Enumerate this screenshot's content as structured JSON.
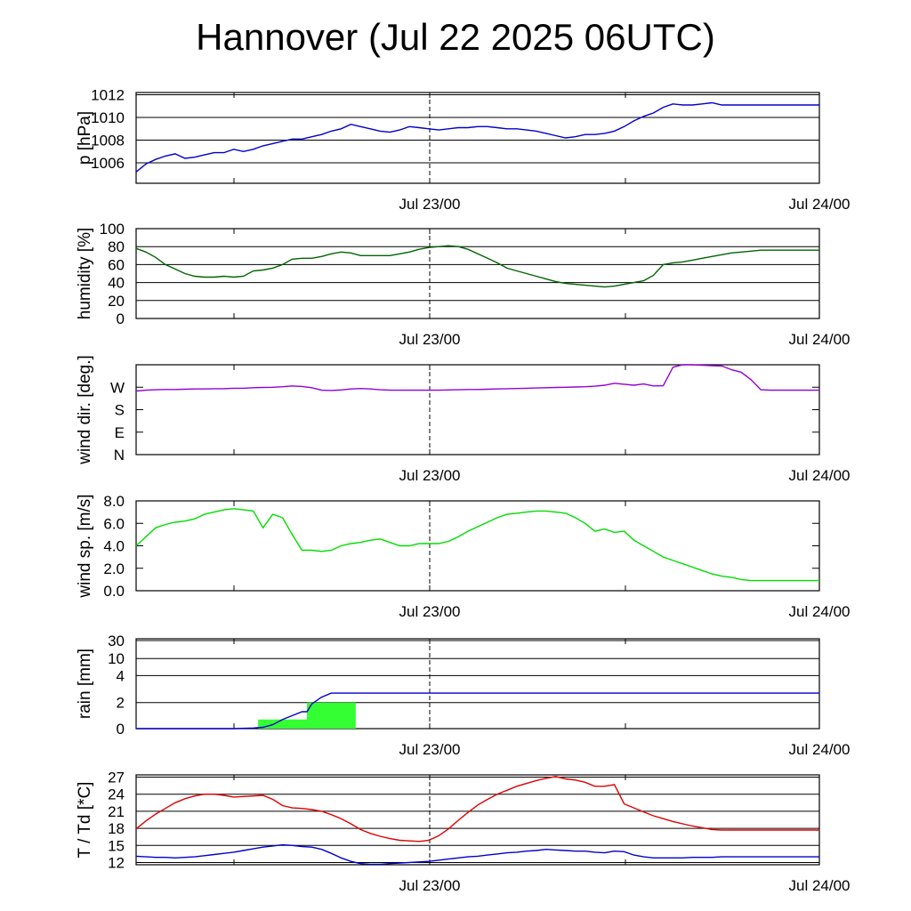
{
  "title": "Hannover (Jul 22 2025 06UTC)",
  "x_ticks": [
    "Jul 23/00",
    "Jul 24/00"
  ],
  "chart_data": [
    {
      "type": "line",
      "ylabel": "p [hPa]",
      "ylim": [
        1004.2,
        1012.2
      ],
      "yticks": [
        1006,
        1008,
        1010,
        1012
      ],
      "ytick_labels": [
        "1006",
        "1008",
        "1010",
        "1012"
      ],
      "grid": true,
      "series": [
        {
          "color": "#0000cc",
          "x": [
            0,
            1,
            2,
            3,
            4,
            5,
            6,
            7,
            8,
            9,
            10,
            11,
            12,
            13,
            14,
            15,
            16,
            17,
            18,
            19,
            20,
            21,
            22,
            23,
            24,
            25,
            26,
            27,
            28,
            29,
            30,
            31,
            32,
            33,
            34,
            35,
            36,
            37,
            38,
            39,
            40,
            41,
            42,
            43,
            44,
            45,
            46,
            47,
            48,
            49,
            50,
            51,
            52,
            53,
            54,
            55,
            56,
            57,
            58,
            59,
            60,
            61,
            62,
            63,
            64,
            65,
            66,
            67,
            68,
            69,
            70
          ],
          "y": [
            1005.2,
            1005.9,
            1006.3,
            1006.6,
            1006.8,
            1006.4,
            1006.5,
            1006.7,
            1006.9,
            1006.9,
            1007.2,
            1007.0,
            1007.2,
            1007.5,
            1007.7,
            1007.9,
            1008.1,
            1008.1,
            1008.3,
            1008.5,
            1008.8,
            1009.0,
            1009.4,
            1009.2,
            1009.0,
            1008.8,
            1008.7,
            1008.9,
            1009.2,
            1009.1,
            1009.0,
            1008.9,
            1009.0,
            1009.1,
            1009.1,
            1009.2,
            1009.2,
            1009.1,
            1009.0,
            1009.0,
            1008.9,
            1008.8,
            1008.6,
            1008.4,
            1008.2,
            1008.3,
            1008.5,
            1008.5,
            1008.6,
            1008.8,
            1009.2,
            1009.7,
            1010.1,
            1010.4,
            1010.9,
            1011.2,
            1011.1,
            1011.1,
            1011.2,
            1011.3,
            1011.1,
            1011.1,
            1011.1,
            1011.1,
            1011.1,
            1011.1,
            1011.1,
            1011.1,
            1011.1,
            1011.1,
            1011.1
          ]
        }
      ]
    },
    {
      "type": "line",
      "ylabel": "humidity [%]",
      "ylim": [
        0,
        100
      ],
      "yticks": [
        0,
        20,
        40,
        60,
        80,
        100
      ],
      "ytick_labels": [
        "0",
        "20",
        "40",
        "60",
        "80",
        "100"
      ],
      "grid": true,
      "series": [
        {
          "color": "#006400",
          "x": [
            0,
            1,
            2,
            3,
            4,
            5,
            6,
            7,
            8,
            9,
            10,
            11,
            12,
            13,
            14,
            15,
            16,
            17,
            18,
            19,
            20,
            21,
            22,
            23,
            24,
            25,
            26,
            27,
            28,
            29,
            30,
            31,
            32,
            33,
            34,
            35,
            36,
            37,
            38,
            39,
            40,
            41,
            42,
            43,
            44,
            45,
            46,
            47,
            48,
            49,
            50,
            51,
            52,
            53,
            54,
            55,
            56,
            57,
            58,
            59,
            60,
            61,
            62,
            63,
            64,
            65,
            66,
            67,
            68,
            69,
            70
          ],
          "y": [
            78,
            74,
            68,
            60,
            55,
            50,
            47,
            46,
            46,
            47,
            46,
            47,
            53,
            54,
            56,
            60,
            66,
            67,
            67,
            69,
            72,
            74,
            73,
            70,
            70,
            70,
            70,
            72,
            74,
            77,
            79,
            80,
            81,
            80,
            77,
            72,
            67,
            62,
            56,
            53,
            50,
            47,
            44,
            41,
            39,
            38,
            37,
            36,
            35,
            36,
            38,
            40,
            42,
            48,
            60,
            62,
            63,
            65,
            67,
            69,
            71,
            73,
            74,
            75,
            76,
            76,
            76,
            76,
            76,
            76,
            76
          ]
        }
      ]
    },
    {
      "type": "line",
      "ylabel": "wind dir. [deg.]",
      "ylim": [
        0,
        360
      ],
      "yticks": [
        0,
        90,
        180,
        270
      ],
      "ytick_labels": [
        "N",
        "E",
        "S",
        "W"
      ],
      "grid": false,
      "series": [
        {
          "color": "#9400d3",
          "x": [
            0,
            1,
            2,
            3,
            4,
            5,
            6,
            7,
            8,
            9,
            10,
            11,
            12,
            13,
            14,
            15,
            16,
            17,
            18,
            19,
            20,
            21,
            22,
            23,
            24,
            25,
            26,
            27,
            28,
            29,
            30,
            31,
            32,
            33,
            34,
            35,
            36,
            37,
            38,
            39,
            40,
            41,
            42,
            43,
            44,
            45,
            46,
            47,
            48,
            49,
            50,
            51,
            52,
            53,
            54,
            55,
            56,
            57,
            58,
            59,
            60,
            61,
            62,
            63,
            64,
            65,
            66,
            67,
            68,
            69,
            70
          ],
          "y": [
            255,
            258,
            260,
            261,
            261,
            262,
            263,
            263,
            264,
            264,
            266,
            266,
            268,
            269,
            270,
            272,
            275,
            273,
            268,
            258,
            257,
            259,
            263,
            265,
            263,
            260,
            258,
            258,
            258,
            258,
            258,
            258,
            259,
            260,
            261,
            261,
            262,
            263,
            264,
            265,
            266,
            267,
            268,
            269,
            270,
            271,
            272,
            274,
            278,
            286,
            282,
            278,
            283,
            275,
            276,
            350,
            360,
            360,
            358,
            356,
            355,
            340,
            330,
            300,
            260,
            258,
            258,
            258,
            258,
            258,
            258
          ]
        }
      ]
    },
    {
      "type": "line",
      "ylabel": "wind sp. [m/s]",
      "ylim": [
        0,
        8
      ],
      "yticks": [
        0,
        2,
        4,
        6,
        8
      ],
      "ytick_labels": [
        "0.0",
        "2.0",
        "4.0",
        "6.0",
        "8.0"
      ],
      "grid": false,
      "series": [
        {
          "color": "#00dd00",
          "x": [
            0,
            1,
            2,
            3,
            4,
            5,
            6,
            7,
            8,
            9,
            10,
            11,
            12,
            13,
            14,
            15,
            16,
            17,
            18,
            19,
            20,
            21,
            22,
            23,
            24,
            25,
            26,
            27,
            28,
            29,
            30,
            31,
            32,
            33,
            34,
            35,
            36,
            37,
            38,
            39,
            40,
            41,
            42,
            43,
            44,
            45,
            46,
            47,
            48,
            49,
            50,
            51,
            52,
            53,
            54,
            55,
            56,
            57,
            58,
            59,
            60,
            61,
            62,
            63,
            64,
            65,
            66,
            67,
            68,
            69,
            70
          ],
          "y": [
            4.0,
            4.8,
            5.6,
            5.9,
            6.1,
            6.2,
            6.4,
            6.8,
            7.0,
            7.2,
            7.3,
            7.2,
            7.1,
            5.6,
            6.8,
            6.5,
            5.0,
            3.6,
            3.6,
            3.5,
            3.6,
            4.0,
            4.2,
            4.3,
            4.5,
            4.6,
            4.3,
            4.0,
            4.0,
            4.2,
            4.2,
            4.2,
            4.4,
            4.8,
            5.3,
            5.7,
            6.1,
            6.5,
            6.8,
            6.9,
            7.0,
            7.1,
            7.1,
            7.0,
            6.9,
            6.5,
            6.0,
            5.3,
            5.5,
            5.2,
            5.3,
            4.5,
            4.0,
            3.5,
            3.0,
            2.7,
            2.4,
            2.1,
            1.8,
            1.5,
            1.3,
            1.2,
            1.0,
            0.9,
            0.9,
            0.9,
            0.9,
            0.9,
            0.9,
            0.9,
            0.9
          ]
        }
      ]
    },
    {
      "type": "bar",
      "ylabel": "rain [mm]",
      "ylim": [
        0,
        30
      ],
      "yticks": [
        0,
        2,
        4,
        10,
        30
      ],
      "ytick_labels": [
        "0",
        "2",
        "4",
        "10",
        "30"
      ],
      "grid": true,
      "bars": [
        {
          "x0": 12.5,
          "x1": 17.5,
          "value": 0.7
        },
        {
          "x0": 17.5,
          "x1": 22.5,
          "value": 2.0
        }
      ],
      "series": [
        {
          "color": "#0000cc",
          "x": [
            0,
            10,
            12,
            13,
            14,
            15,
            16,
            17,
            17.5,
            18,
            19,
            20,
            70
          ],
          "y": [
            0,
            0,
            0.05,
            0.1,
            0.3,
            0.7,
            1.0,
            1.3,
            1.3,
            1.9,
            2.4,
            2.7,
            2.7
          ]
        }
      ]
    },
    {
      "type": "line",
      "ylabel": "T / Td [*C]",
      "ylim": [
        11.6,
        27.4
      ],
      "yticks": [
        12,
        15,
        18,
        21,
        24,
        27
      ],
      "ytick_labels": [
        "12",
        "15",
        "18",
        "21",
        "24",
        "27"
      ],
      "grid": true,
      "series": [
        {
          "color": "#dd0000",
          "x": [
            0,
            1,
            2,
            3,
            4,
            5,
            6,
            7,
            8,
            9,
            10,
            11,
            12,
            13,
            14,
            15,
            16,
            17,
            18,
            19,
            20,
            21,
            22,
            23,
            24,
            25,
            26,
            27,
            28,
            29,
            30,
            31,
            32,
            33,
            34,
            35,
            36,
            37,
            38,
            39,
            40,
            41,
            42,
            43,
            44,
            45,
            46,
            47,
            48,
            49,
            50,
            51,
            52,
            53,
            54,
            55,
            56,
            57,
            58,
            59,
            60,
            61,
            62,
            63,
            64,
            65,
            66,
            67,
            68,
            69,
            70
          ],
          "y": [
            17.9,
            19.3,
            20.5,
            21.5,
            22.5,
            23.2,
            23.7,
            24.0,
            24.0,
            23.8,
            23.5,
            23.6,
            23.7,
            23.8,
            23.1,
            22.0,
            21.6,
            21.5,
            21.3,
            21.0,
            20.4,
            19.7,
            18.8,
            17.8,
            17.1,
            16.6,
            16.2,
            15.9,
            15.8,
            15.7,
            15.9,
            16.7,
            17.9,
            19.4,
            20.8,
            22.1,
            23.1,
            24.0,
            24.7,
            25.4,
            25.9,
            26.4,
            26.8,
            27.1,
            26.7,
            26.5,
            26.1,
            25.4,
            25.4,
            25.7,
            22.3,
            21.6,
            20.9,
            20.2,
            19.7,
            19.2,
            18.8,
            18.4,
            18.1,
            17.8,
            17.7,
            17.7,
            17.7,
            17.7,
            17.7,
            17.7,
            17.7,
            17.7,
            17.7,
            17.7,
            17.7
          ]
        },
        {
          "color": "#0000cc",
          "x": [
            0,
            1,
            2,
            3,
            4,
            5,
            6,
            7,
            8,
            9,
            10,
            11,
            12,
            13,
            14,
            15,
            16,
            17,
            18,
            19,
            20,
            21,
            22,
            23,
            24,
            25,
            26,
            27,
            28,
            29,
            30,
            31,
            32,
            33,
            34,
            35,
            36,
            37,
            38,
            39,
            40,
            41,
            42,
            43,
            44,
            45,
            46,
            47,
            48,
            49,
            50,
            51,
            52,
            53,
            54,
            55,
            56,
            57,
            58,
            59,
            60,
            61,
            62,
            63,
            64,
            65,
            66,
            67,
            68,
            69,
            70
          ],
          "y": [
            13.1,
            13.0,
            12.9,
            12.9,
            12.8,
            12.9,
            13.0,
            13.2,
            13.4,
            13.6,
            13.8,
            14.1,
            14.4,
            14.7,
            14.9,
            15.1,
            15.0,
            14.8,
            14.7,
            14.3,
            13.6,
            12.8,
            12.2,
            11.8,
            11.7,
            11.7,
            11.8,
            11.9,
            12.0,
            12.1,
            12.2,
            12.4,
            12.6,
            12.8,
            13.0,
            13.1,
            13.3,
            13.5,
            13.7,
            13.8,
            14.0,
            14.1,
            14.3,
            14.2,
            14.1,
            14.0,
            14.0,
            13.8,
            13.7,
            14.0,
            13.9,
            13.3,
            13.0,
            12.8,
            12.8,
            12.8,
            12.8,
            12.9,
            12.9,
            12.9,
            13.0,
            13.0,
            13.0,
            13.0,
            13.0,
            13.0,
            13.0,
            13.0,
            13.0,
            13.0,
            13.0
          ]
        }
      ]
    }
  ]
}
